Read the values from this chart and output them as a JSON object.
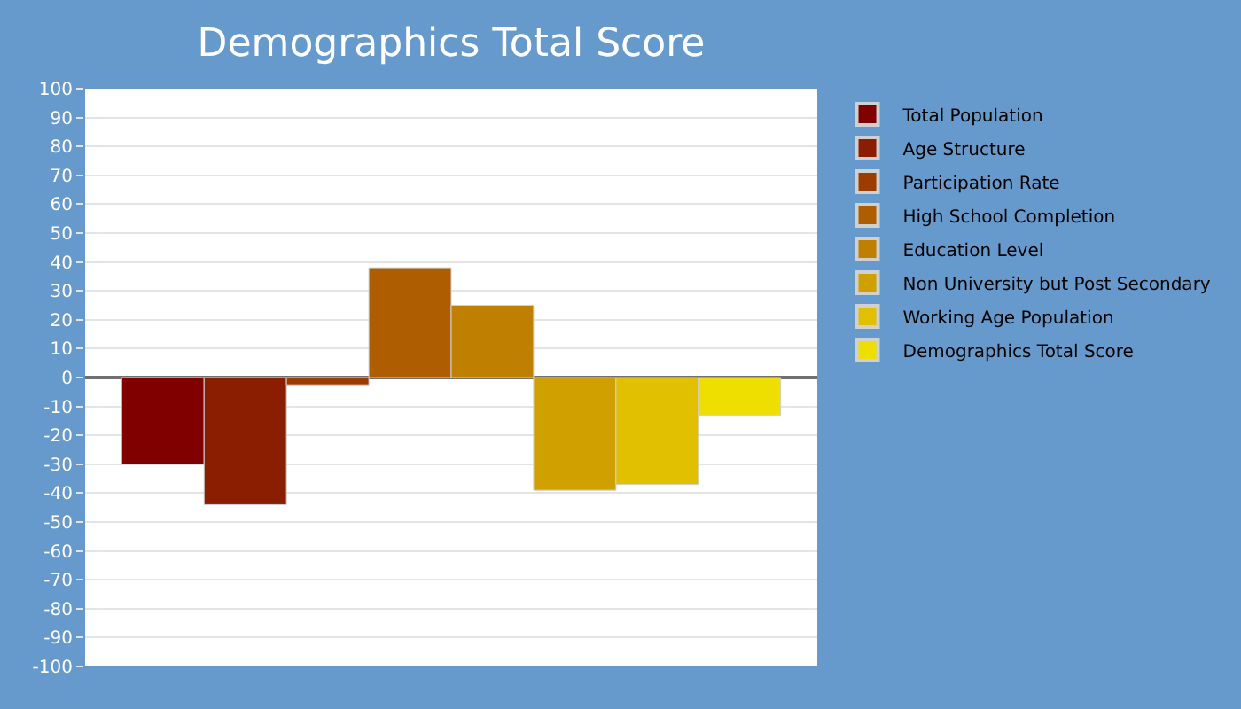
{
  "chart_data": {
    "type": "bar",
    "title": "Demographics Total Score",
    "categories": [
      null
    ],
    "series": [
      {
        "name": "Total Population",
        "color": "#800000",
        "values": [
          -30
        ]
      },
      {
        "name": "Age Structure",
        "color": "#8b1e00",
        "values": [
          -44
        ]
      },
      {
        "name": "Participation Rate",
        "color": "#9c3c00",
        "values": [
          -2.5
        ]
      },
      {
        "name": "High School Completion",
        "color": "#ae5e00",
        "values": [
          38
        ]
      },
      {
        "name": "Education Level",
        "color": "#bf7f00",
        "values": [
          25
        ]
      },
      {
        "name": "Non University but Post Secondary",
        "color": "#d0a000",
        "values": [
          -39
        ]
      },
      {
        "name": "Working Age Population",
        "color": "#e0c000",
        "values": [
          -37
        ]
      },
      {
        "name": "Demographics Total Score",
        "color": "#eedf00",
        "values": [
          -13
        ]
      }
    ],
    "ylim": [
      -100,
      100
    ],
    "yticks": [
      -100,
      -90,
      -80,
      -70,
      -60,
      -50,
      -40,
      -30,
      -20,
      -10,
      0,
      10,
      20,
      30,
      40,
      50,
      60,
      70,
      80,
      90,
      100
    ],
    "grid": "y",
    "legend": "top right"
  }
}
